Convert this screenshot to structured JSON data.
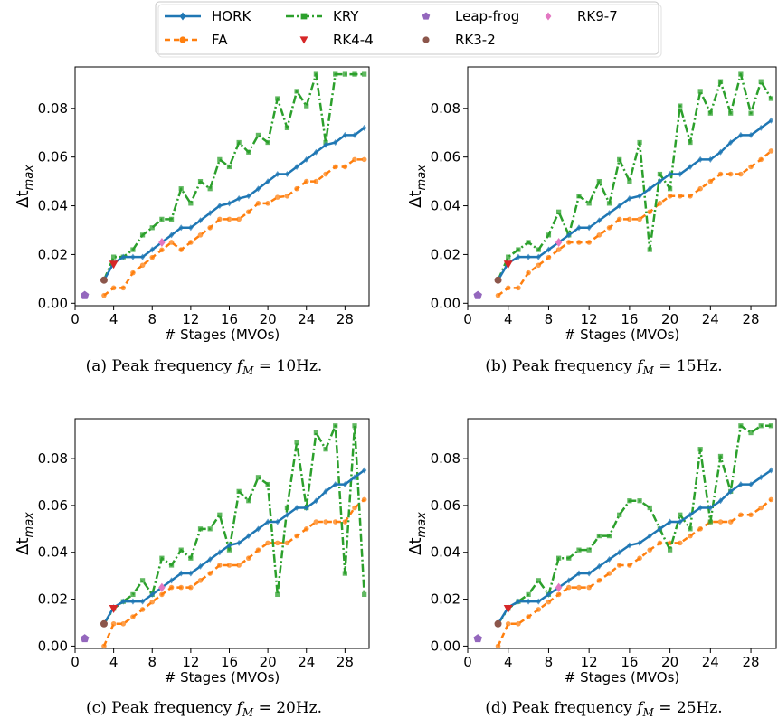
{
  "legend": {
    "position": "top-center",
    "entries": [
      {
        "name": "HORK",
        "color": "#1f77b4",
        "style": "solid",
        "marker": "diamond"
      },
      {
        "name": "FA",
        "color": "#ff7f0e",
        "style": "dashed",
        "marker": "circle"
      },
      {
        "name": "KRY",
        "color": "#2ca02c",
        "style": "dashdot",
        "marker": "square"
      },
      {
        "name": "RK4-4",
        "color": "#d62728",
        "style": "none",
        "marker": "triangle-down"
      },
      {
        "name": "Leap-frog",
        "color": "#9467bd",
        "style": "none",
        "marker": "pentagon"
      },
      {
        "name": "RK3-2",
        "color": "#8c564b",
        "style": "none",
        "marker": "circle"
      },
      {
        "name": "RK9-7",
        "color": "#e377c2",
        "style": "none",
        "marker": "diamond"
      }
    ]
  },
  "chart_data": [
    {
      "type": "line",
      "caption_prefix": "(a) Peak frequency ",
      "caption_math": "f",
      "caption_sub": "M",
      "caption_suffix": " = 10Hz.",
      "xlabel": "# Stages (MVOs)",
      "ylabel_main": "Δt",
      "ylabel_sub": "max",
      "xlim": [
        0,
        30.5
      ],
      "ylim": [
        -0.001,
        0.097
      ],
      "xticks": [
        0,
        4,
        8,
        12,
        16,
        20,
        24,
        28
      ],
      "yticks": [
        0.0,
        0.02,
        0.04,
        0.06,
        0.08
      ],
      "ytick_labels": [
        "0.00",
        "0.02",
        "0.04",
        "0.06",
        "0.08"
      ],
      "series": [
        {
          "name": "HORK",
          "x": [
            3,
            4,
            5,
            6,
            7,
            8,
            9,
            10,
            11,
            12,
            13,
            14,
            15,
            16,
            17,
            18,
            19,
            20,
            21,
            22,
            23,
            24,
            25,
            26,
            27,
            28,
            29,
            30
          ],
          "y": [
            0.0095,
            0.0165,
            0.019,
            0.019,
            0.019,
            0.022,
            0.025,
            0.028,
            0.031,
            0.031,
            0.034,
            0.037,
            0.04,
            0.041,
            0.043,
            0.044,
            0.047,
            0.05,
            0.053,
            0.053,
            0.056,
            0.059,
            0.062,
            0.065,
            0.066,
            0.069,
            0.069,
            0.072
          ]
        },
        {
          "name": "FA",
          "x": [
            3,
            4,
            5,
            6,
            7,
            8,
            9,
            10,
            11,
            12,
            13,
            14,
            15,
            16,
            17,
            18,
            19,
            20,
            21,
            22,
            23,
            24,
            25,
            26,
            27,
            28,
            29,
            30
          ],
          "y": [
            0.0032,
            0.0063,
            0.0063,
            0.0125,
            0.0156,
            0.0188,
            0.0219,
            0.025,
            0.022,
            0.025,
            0.028,
            0.031,
            0.0345,
            0.0345,
            0.0345,
            0.0375,
            0.041,
            0.041,
            0.0435,
            0.044,
            0.047,
            0.05,
            0.05,
            0.053,
            0.056,
            0.056,
            0.059,
            0.059
          ]
        },
        {
          "name": "KRY",
          "x": [
            3,
            4,
            5,
            6,
            7,
            8,
            9,
            10,
            11,
            12,
            13,
            14,
            15,
            16,
            17,
            18,
            19,
            20,
            21,
            22,
            23,
            24,
            25,
            26,
            27,
            28,
            29,
            30
          ],
          "y": [
            0.0095,
            0.019,
            0.019,
            0.022,
            0.028,
            0.031,
            0.0345,
            0.0345,
            0.047,
            0.041,
            0.05,
            0.047,
            0.059,
            0.056,
            0.066,
            0.062,
            0.069,
            0.066,
            0.084,
            0.072,
            0.087,
            0.081,
            0.094,
            0.066,
            0.094,
            0.094,
            0.094,
            0.094
          ]
        },
        {
          "name": "RK4-4",
          "x": [
            4
          ],
          "y": [
            0.016
          ]
        },
        {
          "name": "Leap-frog",
          "x": [
            1
          ],
          "y": [
            0.0032
          ]
        },
        {
          "name": "RK3-2",
          "x": [
            3
          ],
          "y": [
            0.0095
          ]
        },
        {
          "name": "RK9-7",
          "x": [
            9
          ],
          "y": [
            0.025
          ]
        }
      ]
    },
    {
      "type": "line",
      "caption_prefix": "(b) Peak frequency ",
      "caption_math": "f",
      "caption_sub": "M",
      "caption_suffix": " = 15Hz.",
      "xlabel": "# Stages (MVOs)",
      "ylabel_main": "Δt",
      "ylabel_sub": "max",
      "xlim": [
        0,
        30.5
      ],
      "ylim": [
        -0.001,
        0.097
      ],
      "xticks": [
        0,
        4,
        8,
        12,
        16,
        20,
        24,
        28
      ],
      "yticks": [
        0.0,
        0.02,
        0.04,
        0.06,
        0.08
      ],
      "ytick_labels": [
        "0.00",
        "0.02",
        "0.04",
        "0.06",
        "0.08"
      ],
      "series": [
        {
          "name": "HORK",
          "x": [
            3,
            4,
            5,
            6,
            7,
            8,
            9,
            10,
            11,
            12,
            13,
            14,
            15,
            16,
            17,
            18,
            19,
            20,
            21,
            22,
            23,
            24,
            25,
            26,
            27,
            28,
            29,
            30
          ],
          "y": [
            0.0095,
            0.0165,
            0.019,
            0.019,
            0.019,
            0.022,
            0.025,
            0.028,
            0.031,
            0.031,
            0.034,
            0.037,
            0.04,
            0.043,
            0.044,
            0.047,
            0.05,
            0.053,
            0.053,
            0.056,
            0.059,
            0.059,
            0.062,
            0.066,
            0.069,
            0.069,
            0.072,
            0.075
          ]
        },
        {
          "name": "FA",
          "x": [
            3,
            4,
            5,
            6,
            7,
            8,
            9,
            10,
            11,
            12,
            13,
            14,
            15,
            16,
            17,
            18,
            19,
            20,
            21,
            22,
            23,
            24,
            25,
            26,
            27,
            28,
            29,
            30
          ],
          "y": [
            0.0032,
            0.0063,
            0.0063,
            0.0125,
            0.0156,
            0.0188,
            0.022,
            0.025,
            0.025,
            0.025,
            0.028,
            0.031,
            0.0345,
            0.0345,
            0.0345,
            0.0375,
            0.041,
            0.044,
            0.044,
            0.044,
            0.047,
            0.05,
            0.053,
            0.053,
            0.053,
            0.056,
            0.059,
            0.0625
          ]
        },
        {
          "name": "KRY",
          "x": [
            3,
            4,
            5,
            6,
            7,
            8,
            9,
            10,
            11,
            12,
            13,
            14,
            15,
            16,
            17,
            18,
            19,
            20,
            21,
            22,
            23,
            24,
            25,
            26,
            27,
            28,
            29,
            30
          ],
          "y": [
            0.0095,
            0.019,
            0.022,
            0.025,
            0.022,
            0.028,
            0.0375,
            0.028,
            0.044,
            0.041,
            0.05,
            0.041,
            0.059,
            0.05,
            0.066,
            0.022,
            0.053,
            0.047,
            0.081,
            0.066,
            0.087,
            0.078,
            0.091,
            0.078,
            0.094,
            0.078,
            0.091,
            0.084
          ]
        },
        {
          "name": "RK4-4",
          "x": [
            4
          ],
          "y": [
            0.016
          ]
        },
        {
          "name": "Leap-frog",
          "x": [
            1
          ],
          "y": [
            0.0032
          ]
        },
        {
          "name": "RK3-2",
          "x": [
            3
          ],
          "y": [
            0.0095
          ]
        },
        {
          "name": "RK9-7",
          "x": [
            9
          ],
          "y": [
            0.025
          ]
        }
      ]
    },
    {
      "type": "line",
      "caption_prefix": "(c) Peak frequency ",
      "caption_math": "f",
      "caption_sub": "M",
      "caption_suffix": " = 20Hz.",
      "xlabel": "# Stages (MVOs)",
      "ylabel_main": "Δt",
      "ylabel_sub": "max",
      "xlim": [
        0,
        30.5
      ],
      "ylim": [
        -0.001,
        0.097
      ],
      "xticks": [
        0,
        4,
        8,
        12,
        16,
        20,
        24,
        28
      ],
      "yticks": [
        0.0,
        0.02,
        0.04,
        0.06,
        0.08
      ],
      "ytick_labels": [
        "0.00",
        "0.02",
        "0.04",
        "0.06",
        "0.08"
      ],
      "series": [
        {
          "name": "HORK",
          "x": [
            3,
            4,
            5,
            6,
            7,
            8,
            9,
            10,
            11,
            12,
            13,
            14,
            15,
            16,
            17,
            18,
            19,
            20,
            21,
            22,
            23,
            24,
            25,
            26,
            27,
            28,
            29,
            30
          ],
          "y": [
            0.0095,
            0.0165,
            0.019,
            0.019,
            0.019,
            0.022,
            0.025,
            0.028,
            0.031,
            0.031,
            0.034,
            0.037,
            0.04,
            0.043,
            0.044,
            0.047,
            0.05,
            0.053,
            0.053,
            0.056,
            0.059,
            0.059,
            0.062,
            0.066,
            0.069,
            0.069,
            0.072,
            0.075
          ]
        },
        {
          "name": "FA",
          "x": [
            3,
            4,
            5,
            6,
            7,
            8,
            9,
            10,
            11,
            12,
            13,
            14,
            15,
            16,
            17,
            18,
            19,
            20,
            21,
            22,
            23,
            24,
            25,
            26,
            27,
            28,
            29,
            30
          ],
          "y": [
            0.0,
            0.0095,
            0.0095,
            0.0125,
            0.0156,
            0.0188,
            0.022,
            0.025,
            0.025,
            0.025,
            0.028,
            0.031,
            0.0345,
            0.0345,
            0.0345,
            0.0375,
            0.041,
            0.044,
            0.044,
            0.044,
            0.047,
            0.05,
            0.053,
            0.053,
            0.053,
            0.053,
            0.059,
            0.0625
          ]
        },
        {
          "name": "KRY",
          "x": [
            3,
            4,
            5,
            6,
            7,
            8,
            9,
            10,
            11,
            12,
            13,
            14,
            15,
            16,
            17,
            18,
            19,
            20,
            21,
            22,
            23,
            24,
            25,
            26,
            27,
            28,
            29,
            30
          ],
          "y": [
            0.0095,
            0.016,
            0.019,
            0.022,
            0.028,
            0.022,
            0.0375,
            0.0345,
            0.041,
            0.0375,
            0.05,
            0.05,
            0.056,
            0.041,
            0.066,
            0.062,
            0.072,
            0.069,
            0.022,
            0.059,
            0.087,
            0.059,
            0.091,
            0.084,
            0.094,
            0.031,
            0.094,
            0.022
          ]
        },
        {
          "name": "RK4-4",
          "x": [
            4
          ],
          "y": [
            0.016
          ]
        },
        {
          "name": "Leap-frog",
          "x": [
            1
          ],
          "y": [
            0.0032
          ]
        },
        {
          "name": "RK3-2",
          "x": [
            3
          ],
          "y": [
            0.0095
          ]
        },
        {
          "name": "RK9-7",
          "x": [
            9
          ],
          "y": [
            0.025
          ]
        }
      ]
    },
    {
      "type": "line",
      "caption_prefix": "(d) Peak frequency ",
      "caption_math": "f",
      "caption_sub": "M",
      "caption_suffix": " = 25Hz.",
      "xlabel": "# Stages (MVOs)",
      "ylabel_main": "Δt",
      "ylabel_sub": "max",
      "xlim": [
        0,
        30.5
      ],
      "ylim": [
        -0.001,
        0.097
      ],
      "xticks": [
        0,
        4,
        8,
        12,
        16,
        20,
        24,
        28
      ],
      "yticks": [
        0.0,
        0.02,
        0.04,
        0.06,
        0.08
      ],
      "ytick_labels": [
        "0.00",
        "0.02",
        "0.04",
        "0.06",
        "0.08"
      ],
      "series": [
        {
          "name": "HORK",
          "x": [
            3,
            4,
            5,
            6,
            7,
            8,
            9,
            10,
            11,
            12,
            13,
            14,
            15,
            16,
            17,
            18,
            19,
            20,
            21,
            22,
            23,
            24,
            25,
            26,
            27,
            28,
            29,
            30
          ],
          "y": [
            0.0095,
            0.0165,
            0.019,
            0.019,
            0.019,
            0.022,
            0.025,
            0.028,
            0.031,
            0.031,
            0.034,
            0.037,
            0.04,
            0.043,
            0.044,
            0.047,
            0.05,
            0.053,
            0.053,
            0.056,
            0.059,
            0.059,
            0.062,
            0.066,
            0.069,
            0.069,
            0.072,
            0.075
          ]
        },
        {
          "name": "FA",
          "x": [
            3,
            4,
            5,
            6,
            7,
            8,
            9,
            10,
            11,
            12,
            13,
            14,
            15,
            16,
            17,
            18,
            19,
            20,
            21,
            22,
            23,
            24,
            25,
            26,
            27,
            28,
            29,
            30
          ],
          "y": [
            0.0,
            0.0095,
            0.0095,
            0.0125,
            0.0156,
            0.0188,
            0.022,
            0.025,
            0.025,
            0.025,
            0.028,
            0.031,
            0.0345,
            0.0345,
            0.0375,
            0.041,
            0.044,
            0.044,
            0.044,
            0.047,
            0.05,
            0.053,
            0.053,
            0.053,
            0.056,
            0.056,
            0.059,
            0.0625
          ]
        },
        {
          "name": "KRY",
          "x": [
            3,
            4,
            5,
            6,
            7,
            8,
            9,
            10,
            11,
            12,
            13,
            14,
            15,
            16,
            17,
            18,
            19,
            20,
            21,
            22,
            23,
            24,
            25,
            26,
            27,
            28,
            29,
            30
          ],
          "y": [
            0.0095,
            0.016,
            0.019,
            0.022,
            0.028,
            0.022,
            0.0375,
            0.0375,
            0.041,
            0.041,
            0.047,
            0.047,
            0.056,
            0.062,
            0.062,
            0.059,
            0.05,
            0.041,
            0.056,
            0.05,
            0.084,
            0.053,
            0.081,
            0.066,
            0.094,
            0.091,
            0.094,
            0.094
          ]
        },
        {
          "name": "RK4-4",
          "x": [
            4
          ],
          "y": [
            0.016
          ]
        },
        {
          "name": "Leap-frog",
          "x": [
            1
          ],
          "y": [
            0.0032
          ]
        },
        {
          "name": "RK3-2",
          "x": [
            3
          ],
          "y": [
            0.0095
          ]
        },
        {
          "name": "RK9-7",
          "x": [
            9
          ],
          "y": [
            0.025
          ]
        }
      ]
    }
  ]
}
